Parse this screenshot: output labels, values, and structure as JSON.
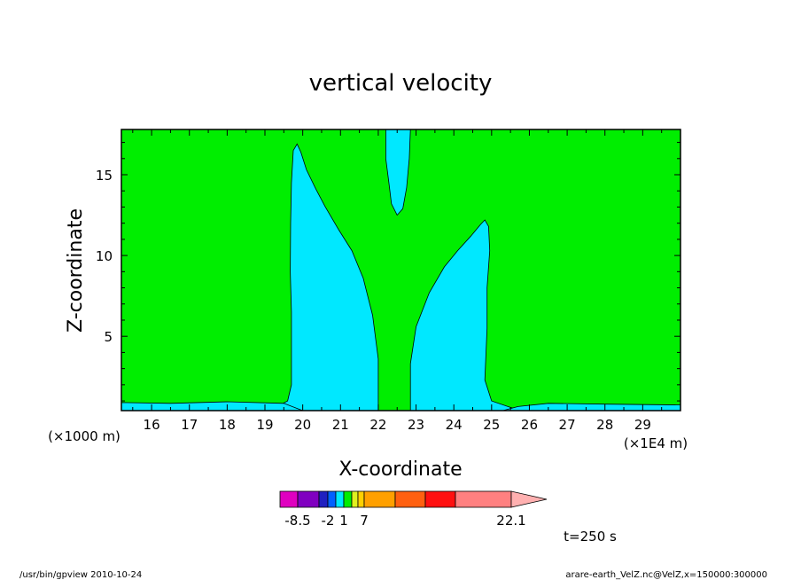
{
  "chart_data": {
    "type": "contour",
    "title": "vertical velocity",
    "xlabel": "X-coordinate",
    "ylabel": "Z-coordinate",
    "x_unit_left": "(×1000 m)",
    "x_unit_right": "(×1E4 m)",
    "x_ticks": [
      "16",
      "17",
      "18",
      "19",
      "20",
      "21",
      "22",
      "23",
      "24",
      "25",
      "26",
      "27",
      "28",
      "29"
    ],
    "y_ticks": [
      "5",
      "10",
      "15"
    ],
    "xlim": [
      15.2,
      30
    ],
    "ylim": [
      0.4,
      17.8
    ],
    "background_level_color": "#00ee00",
    "updraft_level_color": "#00e8ff",
    "updraft_regions": [
      {
        "name": "left plume",
        "outline": [
          [
            19.2,
            0.4
          ],
          [
            19.2,
            0.5
          ],
          [
            19.6,
            1.0
          ],
          [
            19.7,
            2.0
          ],
          [
            19.7,
            4.0
          ],
          [
            19.7,
            6.5
          ],
          [
            19.67,
            9.0
          ],
          [
            19.68,
            12.0
          ],
          [
            19.7,
            14.5
          ],
          [
            19.75,
            16.5
          ],
          [
            19.85,
            16.9
          ],
          [
            19.95,
            16.4
          ],
          [
            20.1,
            15.3
          ],
          [
            20.35,
            14.1
          ],
          [
            20.6,
            13.0
          ],
          [
            20.95,
            11.6
          ],
          [
            21.3,
            10.3
          ],
          [
            21.6,
            8.6
          ],
          [
            21.85,
            6.3
          ],
          [
            22.0,
            3.6
          ],
          [
            22.0,
            0.4
          ]
        ]
      },
      {
        "name": "right plume",
        "outline": [
          [
            22.85,
            0.4
          ],
          [
            22.85,
            3.3
          ],
          [
            23.0,
            5.6
          ],
          [
            23.35,
            7.7
          ],
          [
            23.75,
            9.3
          ],
          [
            24.1,
            10.3
          ],
          [
            24.45,
            11.2
          ],
          [
            24.7,
            11.9
          ],
          [
            24.82,
            12.2
          ],
          [
            24.92,
            11.8
          ],
          [
            24.95,
            10.3
          ],
          [
            24.88,
            8.0
          ],
          [
            24.88,
            5.5
          ],
          [
            24.82,
            2.3
          ],
          [
            25.0,
            1.0
          ],
          [
            25.5,
            0.6
          ],
          [
            25.8,
            0.4
          ]
        ]
      },
      {
        "name": "upper core",
        "outline": [
          [
            22.2,
            17.8
          ],
          [
            22.2,
            16.0
          ],
          [
            22.28,
            14.5
          ],
          [
            22.35,
            13.2
          ],
          [
            22.5,
            12.5
          ],
          [
            22.65,
            12.9
          ],
          [
            22.75,
            14.2
          ],
          [
            22.82,
            16.0
          ],
          [
            22.85,
            17.8
          ]
        ]
      },
      {
        "name": "surface layer",
        "outline": [
          [
            15.2,
            0.4
          ],
          [
            15.2,
            0.9
          ],
          [
            16.5,
            0.85
          ],
          [
            18.0,
            0.95
          ],
          [
            19.5,
            0.85
          ],
          [
            20.0,
            0.4
          ]
        ]
      },
      {
        "name": "surface layer right",
        "outline": [
          [
            25.3,
            0.4
          ],
          [
            25.7,
            0.65
          ],
          [
            26.5,
            0.85
          ],
          [
            28.0,
            0.8
          ],
          [
            30.0,
            0.75
          ],
          [
            30.0,
            0.4
          ]
        ]
      }
    ],
    "colorbar": {
      "colors": [
        "#e000c0",
        "#8000c0",
        "#2020c0",
        "#0060ff",
        "#00e8ff",
        "#00ee00",
        "#e0f020",
        "#ffd000",
        "#ffa000",
        "#ff6010",
        "#ff1010",
        "#ff8080",
        "#ffb0b0"
      ],
      "tick_labels": [
        "-8.5",
        "-2",
        "1",
        "7",
        "22.1"
      ]
    },
    "time_label": "t=250 s"
  },
  "footer": {
    "left": "/usr/bin/gpview   2010-10-24",
    "right": "arare-earth_VelZ.nc@VelZ,x=150000:300000"
  }
}
